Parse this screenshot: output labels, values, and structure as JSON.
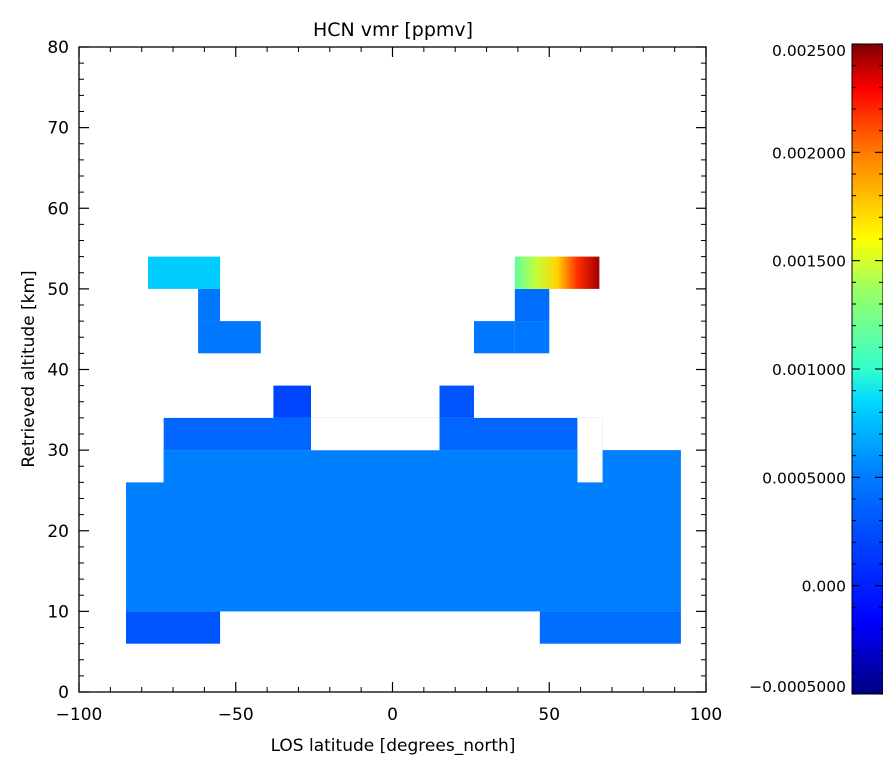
{
  "chart_data": [
    {
      "type": "heatmap",
      "title": "HCN vmr [ppmv]",
      "xlabel": "LOS latitude [degrees_north]",
      "ylabel": "Retrieved altitude [km]",
      "xlim": [
        -100,
        100
      ],
      "ylim": [
        0,
        80
      ],
      "xticks": [
        -100,
        -50,
        0,
        50,
        100
      ],
      "xtick_labels": [
        "−100",
        "−50",
        "0",
        "50",
        "100"
      ],
      "yticks": [
        0,
        10,
        20,
        30,
        40,
        50,
        60,
        70,
        80
      ],
      "ytick_labels": [
        "0",
        "10",
        "20",
        "30",
        "40",
        "50",
        "60",
        "70",
        "80"
      ],
      "grid": false,
      "colormap": [
        "#00007f",
        "#0000ff",
        "#007fff",
        "#00ffff",
        "#7fff7f",
        "#ffff00",
        "#ff7f00",
        "#ff0000",
        "#7f0000"
      ],
      "cells": [
        {
          "x0": -78,
          "x1": -55,
          "y0": 50,
          "y1": 54,
          "values": [
            0.00045,
            0.0005
          ]
        },
        {
          "x0": -62,
          "x1": -55,
          "y0": 46,
          "y1": 50,
          "values": [
            0.0002,
            0.00025
          ]
        },
        {
          "x0": -62,
          "x1": -42,
          "y0": 42,
          "y1": 46,
          "values": [
            0.0002,
            0.00025
          ]
        },
        {
          "x0": -38,
          "x1": -26,
          "y0": 34,
          "y1": 38,
          "values": [
            5e-05,
            0.0001
          ]
        },
        {
          "x0": 15,
          "x1": 26,
          "y0": 34,
          "y1": 38,
          "values": [
            0.0001,
            0.00015
          ]
        },
        {
          "x0": 26,
          "x1": 39,
          "y0": 42,
          "y1": 46,
          "values": [
            0.0002,
            0.00025
          ]
        },
        {
          "x0": 39,
          "x1": 50,
          "y0": 42,
          "y1": 46,
          "values": [
            0.0002,
            0.00025
          ]
        },
        {
          "x0": 39,
          "x1": 50,
          "y0": 46,
          "y1": 50,
          "values": [
            0.00015,
            0.00025
          ]
        },
        {
          "x0": 39,
          "x1": 66,
          "y0": 50,
          "y1": 54,
          "values": [
            0.0009,
            0.0012,
            0.0015,
            0.002,
            0.0024
          ]
        },
        {
          "x0": -73,
          "x1": 59,
          "y0": 30,
          "y1": 34,
          "values": [
            0.00015,
            0.0002
          ]
        },
        {
          "x0": 59,
          "x1": 67,
          "y0": 26,
          "y1": 34,
          "values": [
            0.00015,
            0.0002
          ]
        },
        {
          "x0": -85,
          "x1": 92,
          "y0": 10,
          "y1": 30,
          "values": [
            0.0002,
            0.0003
          ]
        },
        {
          "x0": -85,
          "x1": -55,
          "y0": 6,
          "y1": 10,
          "values": [
            5e-05,
            0.0002
          ]
        },
        {
          "x0": 47,
          "x1": 92,
          "y0": 6,
          "y1": 10,
          "values": [
            0.00015,
            0.00025
          ]
        }
      ],
      "gaps": [
        {
          "x0": -85,
          "x1": -73,
          "y0": 26,
          "y1": 34
        },
        {
          "x0": -26,
          "x1": 15,
          "y0": 30,
          "y1": 34
        },
        {
          "x0": 59,
          "x1": 67,
          "y0": 26,
          "y1": 34
        }
      ],
      "colorbar": {
        "min": -0.0005,
        "max": 0.0025,
        "ticks": [
          -0.0005,
          0.0,
          0.0005,
          0.001,
          0.0015,
          0.002,
          0.0025
        ],
        "tick_labels": [
          "−0.0005000",
          "0.000",
          "0.0005000",
          "0.001000",
          "0.001500",
          "0.002000",
          "0.002500"
        ]
      }
    }
  ]
}
